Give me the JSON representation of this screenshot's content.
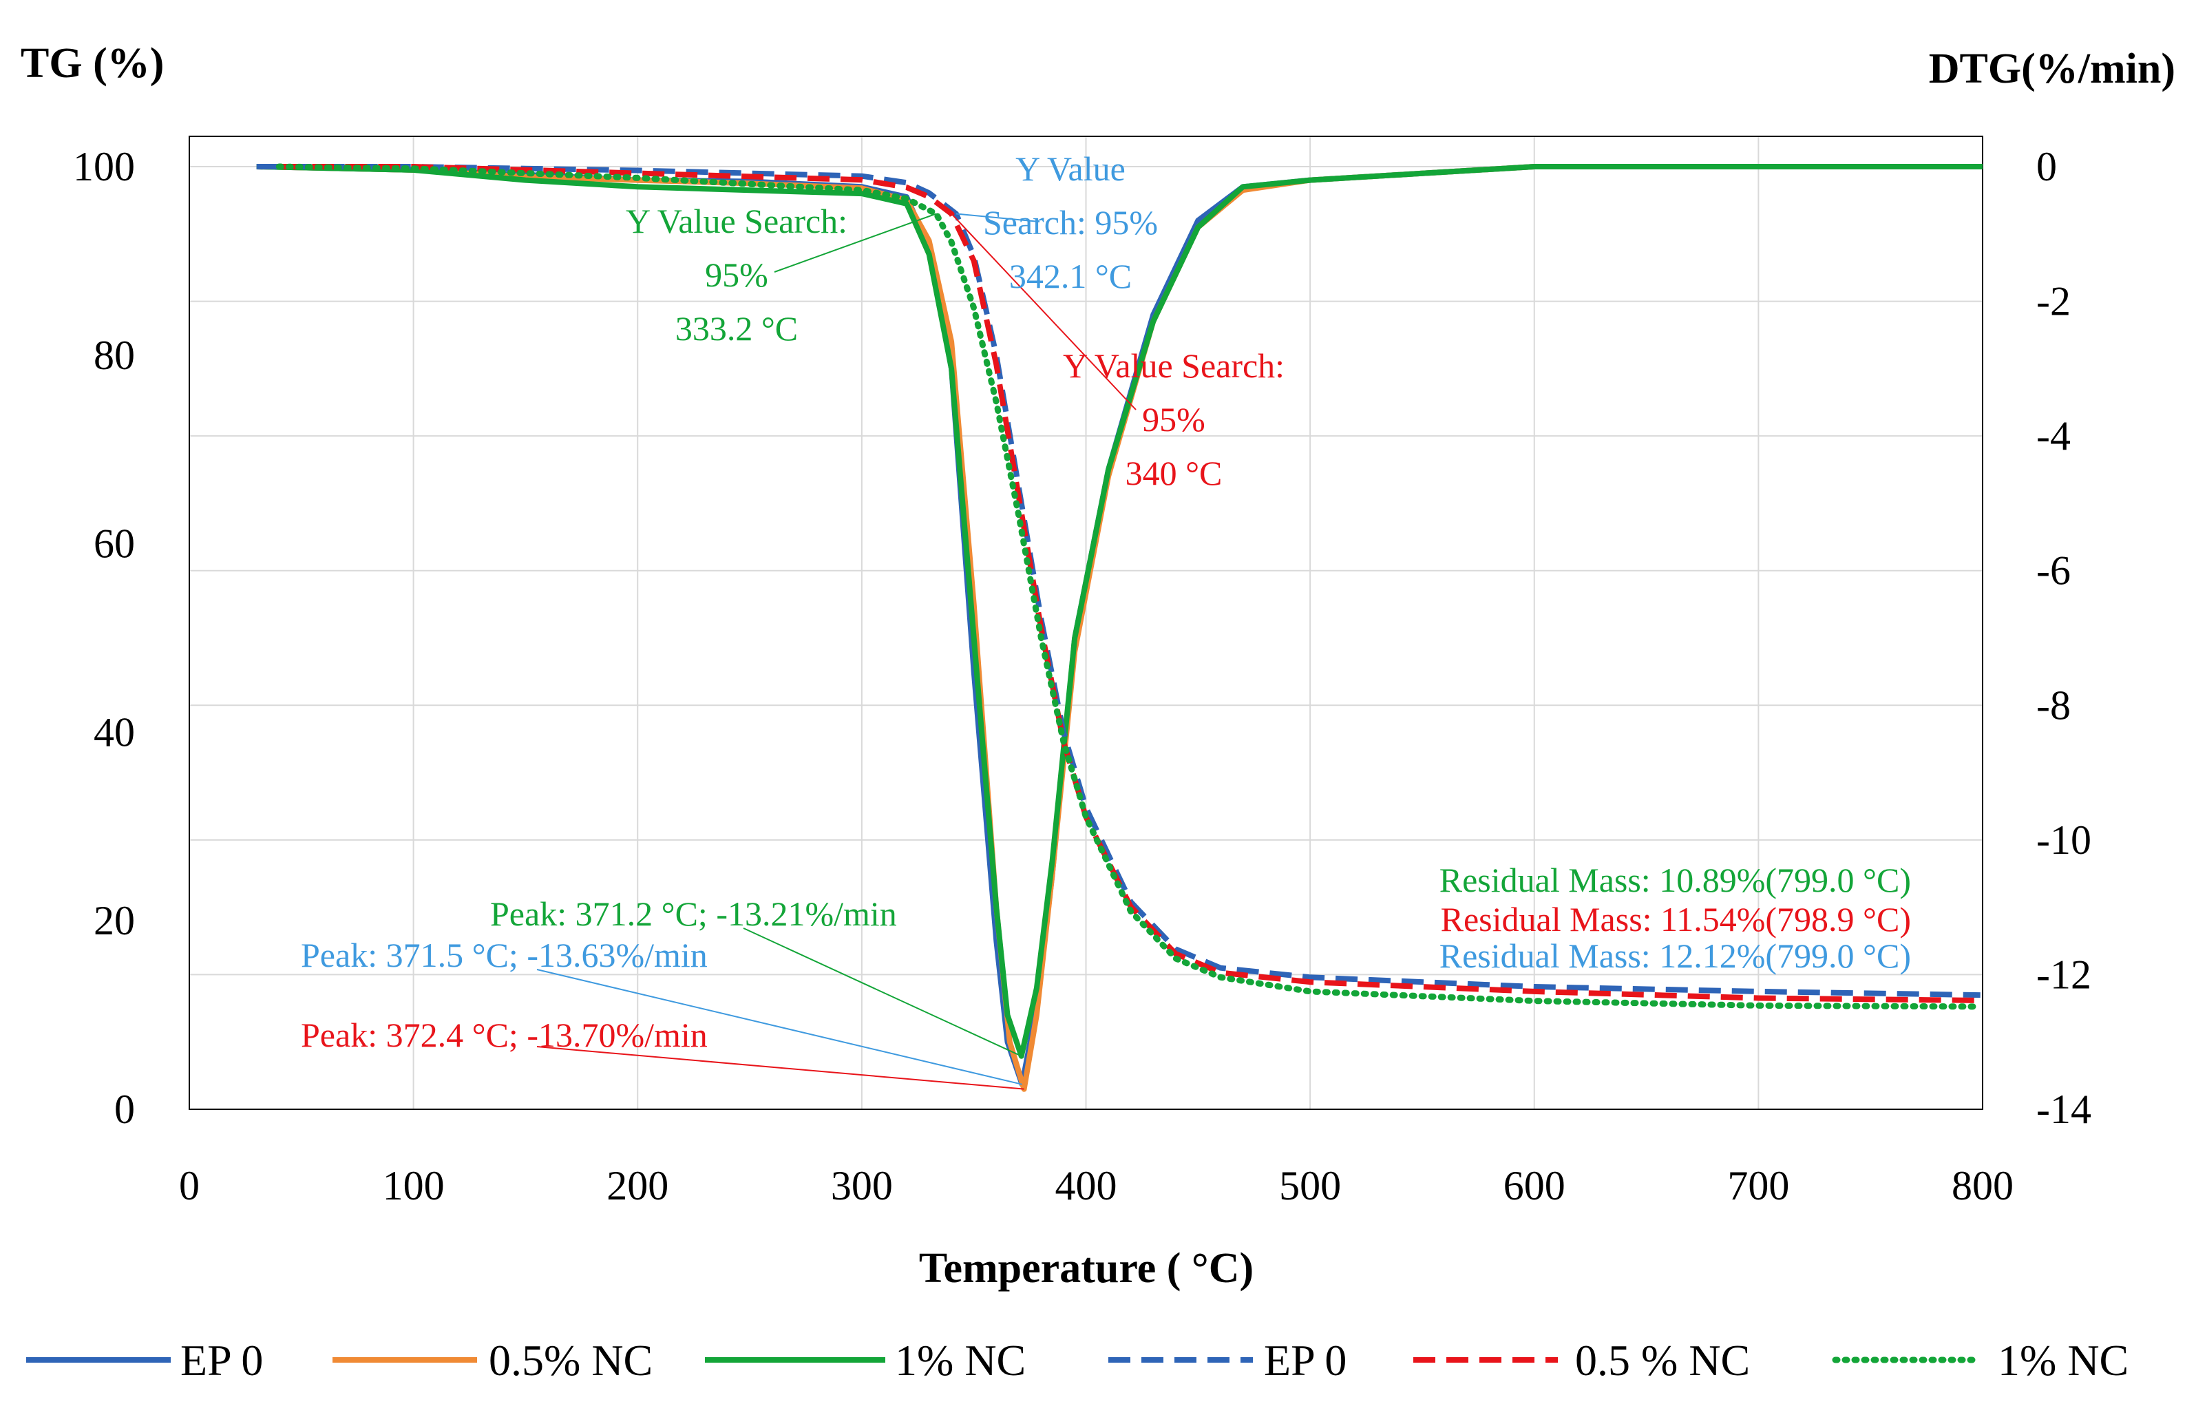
{
  "chart_data": {
    "type": "line",
    "title": "",
    "xlabel": "Temperature ( °C)",
    "ylabel_left": "TG (%)",
    "ylabel_right": "DTG(%/min)",
    "xlim": [
      0,
      800
    ],
    "ylim_left": [
      0,
      100
    ],
    "ylim_right": [
      -14,
      0
    ],
    "xticks": [
      "0",
      "100",
      "200",
      "300",
      "400",
      "500",
      "600",
      "700",
      "800"
    ],
    "yticks_left": [
      "0",
      "20",
      "40",
      "60",
      "80",
      "100"
    ],
    "yticks_right": [
      "0",
      "-2",
      "-4",
      "-6",
      "-8",
      "-10",
      "-12",
      "-14"
    ],
    "grid": true,
    "colors": {
      "ep0": "#2E64B7",
      "nc05_dtg": "#F08A34",
      "nc1": "#13A538",
      "nc05_tg": "#E8141A",
      "anno_blue": "#3F9ADF"
    },
    "series": [
      {
        "name": "EP 0",
        "axis": "right",
        "kind": "DTG",
        "style": "solid",
        "color": "#2E64B7",
        "x": [
          30,
          100,
          150,
          200,
          250,
          300,
          320,
          330,
          340,
          350,
          360,
          365,
          371.5,
          378,
          385,
          395,
          410,
          430,
          450,
          470,
          500,
          550,
          600,
          650,
          700,
          750,
          800
        ],
        "y": [
          0,
          -0.05,
          -0.12,
          -0.2,
          -0.22,
          -0.3,
          -0.45,
          -1.2,
          -3.0,
          -7.5,
          -11.5,
          -13.0,
          -13.63,
          -12.5,
          -10.5,
          -7.0,
          -4.5,
          -2.2,
          -0.8,
          -0.3,
          -0.2,
          -0.1,
          0,
          0,
          0,
          0,
          0
        ]
      },
      {
        "name": "0.5% NC",
        "axis": "right",
        "kind": "DTG",
        "style": "solid",
        "color": "#F08A34",
        "x": [
          30,
          100,
          150,
          200,
          250,
          300,
          320,
          330,
          340,
          350,
          360,
          366,
          372.4,
          378,
          385,
          395,
          410,
          430,
          450,
          470,
          500,
          550,
          600,
          650,
          700,
          750,
          800
        ],
        "y": [
          0,
          -0.05,
          -0.15,
          -0.2,
          -0.25,
          -0.32,
          -0.5,
          -1.1,
          -2.6,
          -6.5,
          -11.0,
          -13.0,
          -13.7,
          -12.6,
          -10.5,
          -7.2,
          -4.6,
          -2.3,
          -0.9,
          -0.35,
          -0.2,
          -0.1,
          0,
          0,
          0,
          0,
          0
        ]
      },
      {
        "name": "1% NC",
        "axis": "right",
        "kind": "DTG",
        "style": "solid",
        "color": "#13A538",
        "x": [
          30,
          100,
          150,
          200,
          250,
          300,
          320,
          330,
          340,
          350,
          360,
          365,
          371.2,
          378,
          385,
          395,
          410,
          430,
          450,
          470,
          500,
          550,
          600,
          650,
          700,
          750,
          800
        ],
        "y": [
          0,
          -0.05,
          -0.2,
          -0.3,
          -0.35,
          -0.4,
          -0.55,
          -1.3,
          -3.0,
          -7.0,
          -11.0,
          -12.6,
          -13.21,
          -12.2,
          -10.3,
          -7.0,
          -4.5,
          -2.3,
          -0.9,
          -0.3,
          -0.2,
          -0.1,
          0,
          0,
          0,
          0,
          0
        ]
      },
      {
        "name": "EP 0",
        "axis": "left",
        "kind": "TG",
        "style": "dash",
        "color": "#2E64B7",
        "x": [
          30,
          100,
          200,
          300,
          320,
          330,
          342.1,
          350,
          360,
          370,
          380,
          390,
          400,
          420,
          440,
          460,
          500,
          600,
          700,
          799
        ],
        "y": [
          100,
          100,
          99.6,
          99,
          98.3,
          97.2,
          95,
          90.5,
          80,
          66,
          52,
          40,
          32,
          22,
          17,
          15,
          14,
          13,
          12.5,
          12.12
        ]
      },
      {
        "name": "0.5 % NC",
        "axis": "left",
        "kind": "TG",
        "style": "dash",
        "color": "#E8141A",
        "x": [
          40,
          100,
          200,
          300,
          320,
          330,
          340,
          350,
          360,
          370,
          380,
          390,
          400,
          420,
          440,
          460,
          500,
          600,
          700,
          798.9
        ],
        "y": [
          100,
          100,
          99.3,
          98.6,
          97.8,
          96.8,
          95,
          90,
          79,
          65,
          51,
          39,
          31,
          21.5,
          16.5,
          14.5,
          13.5,
          12.5,
          11.8,
          11.54
        ]
      },
      {
        "name": "1% NC",
        "axis": "left",
        "kind": "TG",
        "style": "dot",
        "color": "#13A538",
        "x": [
          40,
          100,
          200,
          300,
          320,
          333.2,
          340,
          350,
          360,
          370,
          380,
          390,
          400,
          420,
          440,
          460,
          500,
          600,
          700,
          799
        ],
        "y": [
          100,
          99.8,
          98.8,
          97.5,
          96.6,
          95,
          92,
          85,
          75,
          63,
          50,
          39,
          31,
          21,
          16,
          14,
          12.5,
          11.5,
          11,
          10.89
        ]
      }
    ],
    "annotations": {
      "yvs_blue": {
        "lines": [
          "Y Value",
          "Search: 95%",
          "342.1 °C"
        ],
        "color": "#3F9ADF",
        "target_x": 342.1,
        "target_y": 95,
        "axis": "left"
      },
      "yvs_green": {
        "lines": [
          "Y Value Search:",
          "95%",
          "333.2 °C"
        ],
        "color": "#13A538",
        "target_x": 333.2,
        "target_y": 95,
        "axis": "left"
      },
      "yvs_red": {
        "lines": [
          "Y Value Search:",
          "95%",
          "340 °C"
        ],
        "color": "#E8141A",
        "target_x": 340,
        "target_y": 95,
        "axis": "left"
      },
      "peak_green": {
        "text": "Peak: 371.2 °C; -13.21%/min",
        "color": "#13A538",
        "target_x": 371.2,
        "target_y": -13.21,
        "axis": "right"
      },
      "peak_blue": {
        "text": "Peak: 371.5 °C; -13.63%/min",
        "color": "#3F9ADF",
        "target_x": 371.5,
        "target_y": -13.63,
        "axis": "right"
      },
      "peak_red": {
        "text": "Peak: 372.4 °C; -13.70%/min",
        "color": "#E8141A",
        "target_x": 372.4,
        "target_y": -13.7,
        "axis": "right"
      },
      "res_green": {
        "text": "Residual Mass: 10.89%(799.0 °C)",
        "color": "#13A538"
      },
      "res_red": {
        "text": "Residual Mass: 11.54%(798.9 °C)",
        "color": "#E8141A"
      },
      "res_blue": {
        "text": "Residual Mass: 12.12%(799.0 °C)",
        "color": "#3F9ADF"
      }
    },
    "legend": [
      {
        "label": "EP 0",
        "color": "#2E64B7",
        "style": "solid"
      },
      {
        "label": "0.5% NC",
        "color": "#F08A34",
        "style": "solid"
      },
      {
        "label": "1% NC",
        "color": "#13A538",
        "style": "solid"
      },
      {
        "label": "EP 0",
        "color": "#2E64B7",
        "style": "dash"
      },
      {
        "label": "0.5 % NC",
        "color": "#E8141A",
        "style": "dash"
      },
      {
        "label": "1% NC",
        "color": "#13A538",
        "style": "dot"
      }
    ],
    "legend_position": "bottom"
  }
}
